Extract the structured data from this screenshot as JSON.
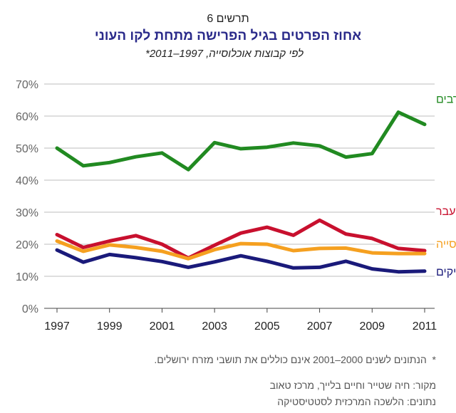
{
  "figure_label": "תרשים 6",
  "chart_data": {
    "type": "line",
    "title": "אחוז הפרטים בגיל הפרישה מתחת לקו העוני",
    "subtitle": "לפי קבוצות אוכלוסייה, 1997–2011*",
    "x": [
      1997,
      1998,
      1999,
      2000,
      2001,
      2002,
      2003,
      2004,
      2005,
      2006,
      2007,
      2008,
      2009,
      2010,
      2011
    ],
    "xticks": [
      1997,
      1999,
      2001,
      2003,
      2005,
      2007,
      2009,
      2011
    ],
    "ylim": [
      0,
      70
    ],
    "yticks": [
      0,
      10,
      20,
      30,
      40,
      50,
      60,
      70
    ],
    "ytick_labels": [
      "0%",
      "10%",
      "20%",
      "30%",
      "40%",
      "50%",
      "60%",
      "70%"
    ],
    "grid": true,
    "series": [
      {
        "name": "ערבים",
        "color": "#218a21",
        "values": [
          50,
          44.5,
          45.5,
          47.3,
          48.5,
          43.3,
          51.7,
          49.8,
          50.3,
          51.6,
          50.7,
          47.2,
          48.3,
          61.2,
          57.4
        ]
      },
      {
        "name": "יוצאי ברה\"מ לשעבר",
        "color": "#c8102e",
        "values": [
          23.0,
          19.0,
          21.0,
          22.7,
          20.0,
          15.7,
          19.7,
          23.5,
          25.3,
          22.8,
          27.5,
          23.2,
          21.8,
          18.7,
          18.0
        ]
      },
      {
        "name": "כלל האוכלוסייה",
        "color": "#f5a020",
        "values": [
          21.0,
          17.8,
          19.8,
          19.0,
          17.8,
          15.5,
          18.3,
          20.2,
          20.0,
          18.0,
          18.7,
          18.8,
          17.3,
          17.1,
          17.1
        ]
      },
      {
        "name": "ותיקים",
        "color": "#1a1a7a",
        "values": [
          18.2,
          14.4,
          16.8,
          15.8,
          14.6,
          12.8,
          14.5,
          16.4,
          14.7,
          12.6,
          12.8,
          14.7,
          12.3,
          11.4,
          11.6
        ]
      }
    ]
  },
  "footnote": "הנתונים לשנים 2000–2001 אינם כוללים את תושבי מזרח ירושלים.",
  "footnote_marker": "*",
  "source": "מקור: חיה שטייר וחיים בלייך, מרכז טאוב",
  "data_source": "נתונים: הלשכה המרכזית לסטטיסטיקה"
}
